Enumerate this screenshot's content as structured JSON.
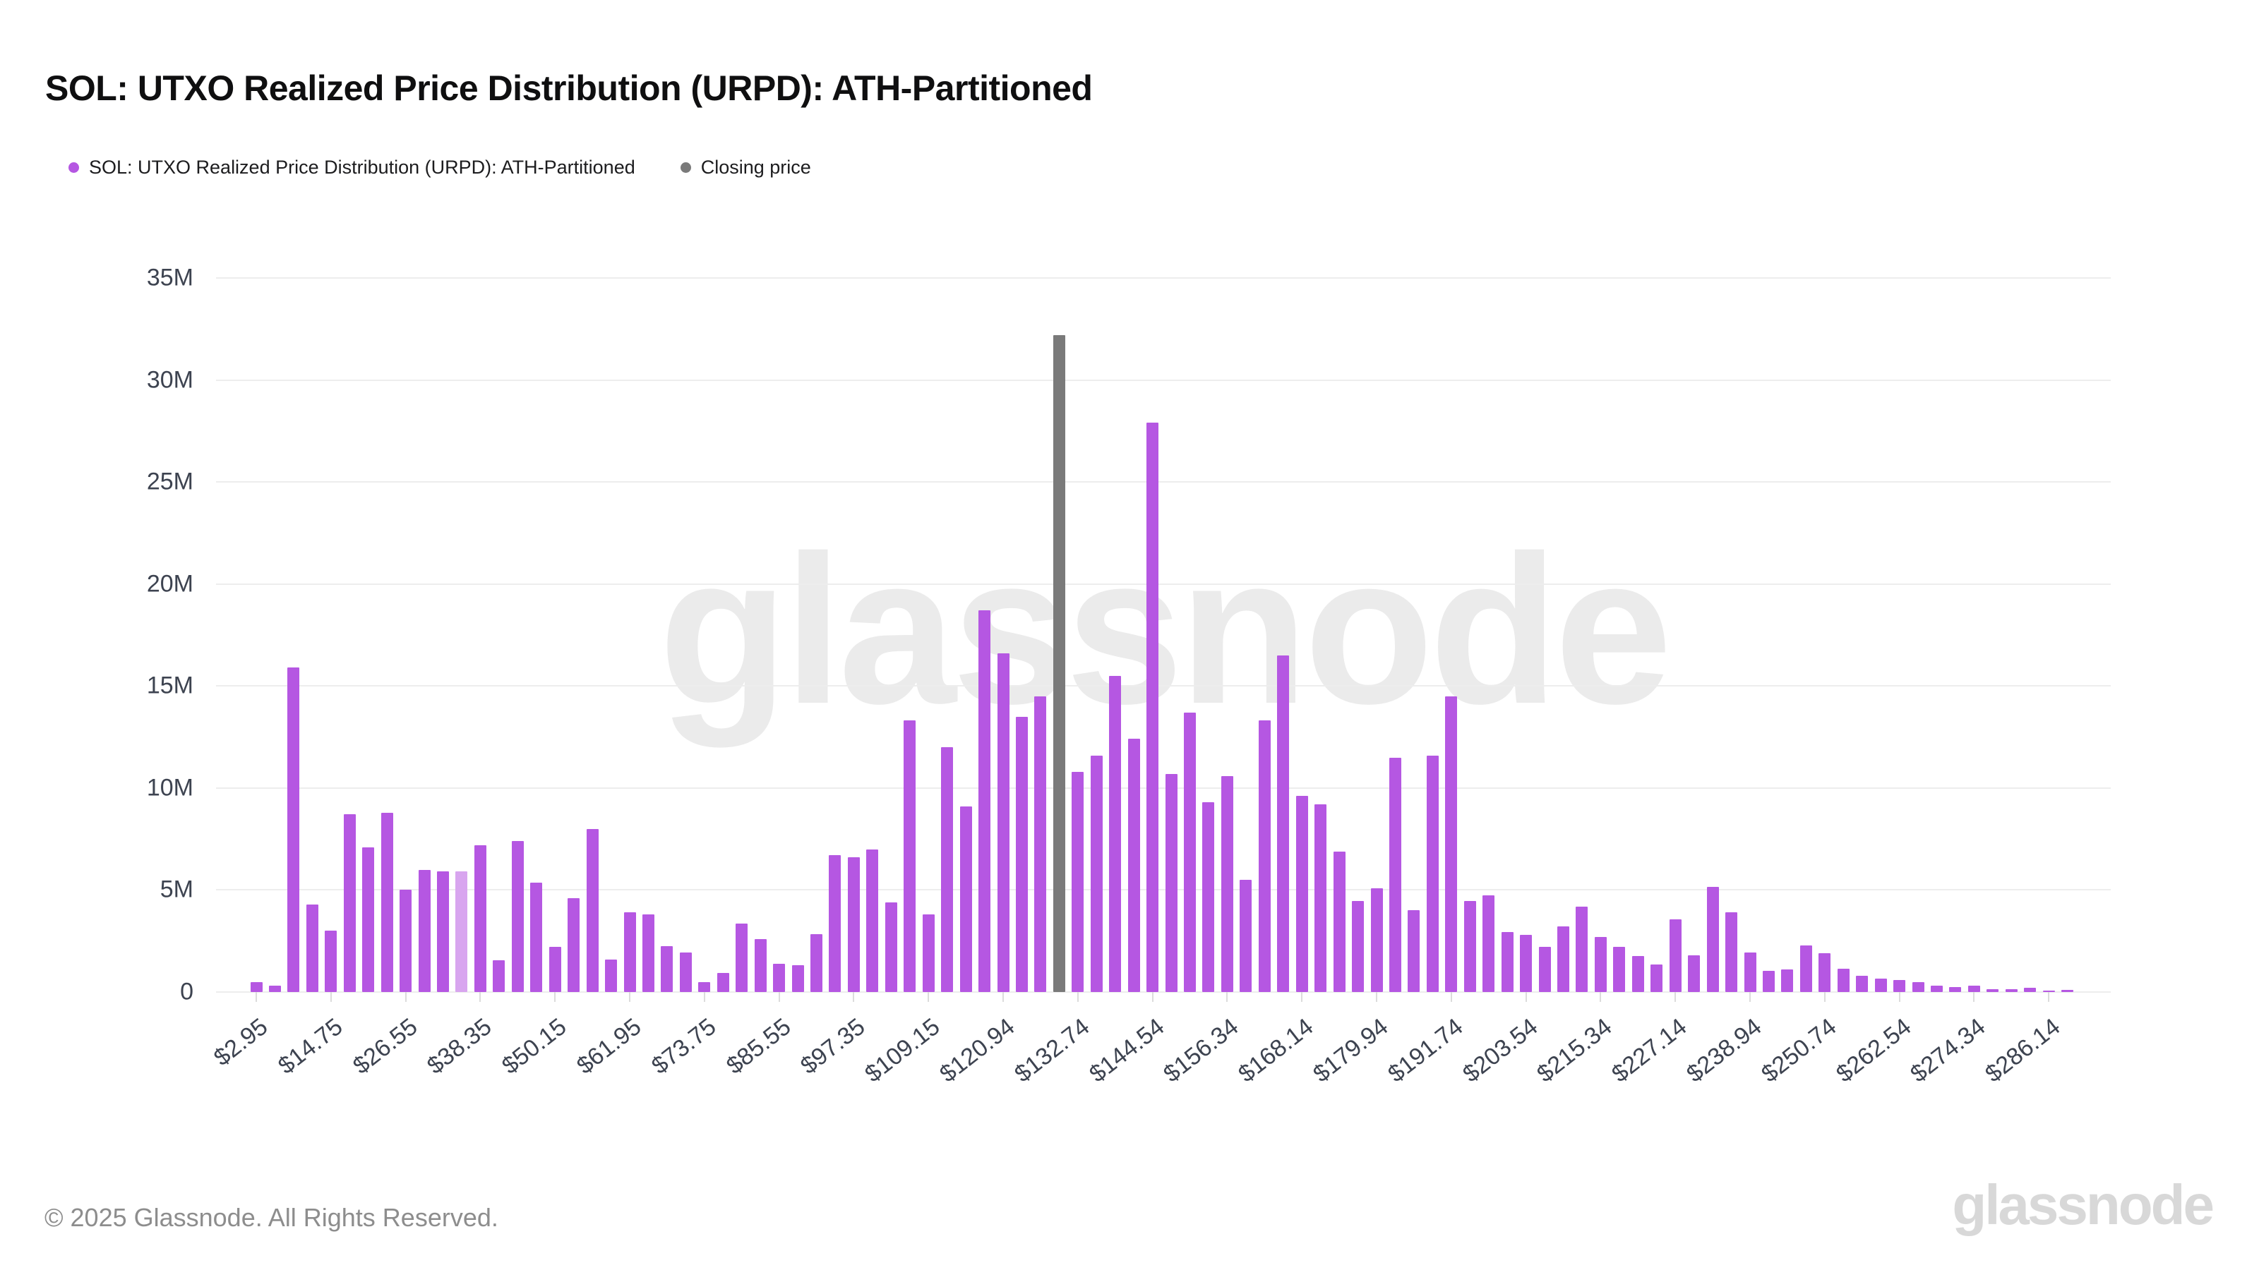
{
  "header": {
    "title": "SOL: UTXO Realized Price Distribution (URPD): ATH-Partitioned"
  },
  "legend": [
    {
      "label": "SOL: UTXO Realized Price Distribution (URPD): ATH-Partitioned",
      "color": "#b557e2"
    },
    {
      "label": "Closing price",
      "color": "#7a7a7a"
    }
  ],
  "watermark": "glassnode",
  "footer": {
    "copyright": "© 2025 Glassnode. All Rights Reserved.",
    "brand": "glassnode"
  },
  "chart_data": {
    "type": "bar",
    "title": "SOL: UTXO Realized Price Distribution (URPD): ATH-Partitioned",
    "xlabel": "",
    "ylabel": "",
    "grid": true,
    "legend_position": "top-left",
    "ylim_millions": [
      0,
      35
    ],
    "y_ticks": [
      "0",
      "5M",
      "10M",
      "15M",
      "20M",
      "25M",
      "30M",
      "35M"
    ],
    "x_tick_every": 4,
    "bar_step_usd": 2.95,
    "x_tick_labels": [
      "$2.95",
      "$14.75",
      "$26.55",
      "$38.35",
      "$50.15",
      "$61.95",
      "$73.75",
      "$85.55",
      "$97.35",
      "$109.15",
      "$120.94",
      "$132.74",
      "$144.54",
      "$156.34",
      "$168.14",
      "$179.94",
      "$191.74",
      "$203.54",
      "$215.34",
      "$227.14",
      "$238.94",
      "$250.74",
      "$262.54",
      "$274.34",
      "$286.14"
    ],
    "values_millions": [
      0.5,
      0.3,
      15.9,
      4.3,
      3.0,
      8.7,
      7.1,
      8.8,
      5.0,
      6.0,
      5.9,
      5.9,
      7.2,
      1.55,
      7.4,
      5.35,
      2.2,
      4.6,
      8.0,
      1.6,
      3.9,
      3.8,
      2.25,
      1.95,
      0.5,
      0.95,
      3.35,
      2.6,
      1.4,
      1.3,
      2.85,
      6.7,
      6.6,
      7.0,
      4.4,
      13.3,
      3.8,
      12.0,
      9.1,
      18.7,
      16.6,
      13.5,
      14.5,
      32.2,
      10.8,
      11.6,
      15.5,
      12.4,
      27.9,
      10.7,
      13.7,
      9.3,
      10.6,
      5.5,
      13.3,
      16.5,
      9.6,
      9.2,
      6.9,
      4.45,
      5.1,
      11.5,
      4.0,
      11.6,
      14.5,
      4.45,
      4.75,
      2.95,
      2.8,
      2.2,
      3.2,
      4.2,
      2.7,
      2.2,
      1.75,
      1.35,
      3.55,
      1.8,
      5.15,
      3.9,
      1.95,
      1.05,
      1.1,
      2.3,
      1.9,
      1.15,
      0.8,
      0.65,
      0.6,
      0.5,
      0.3,
      0.25,
      0.3,
      0.15,
      0.15,
      0.2,
      0.05,
      0.12
    ],
    "light_bar_index": 11,
    "closing_price_bar": {
      "index": 43,
      "value_millions": 32.2,
      "label": "Closing price"
    },
    "colors": {
      "bar": "#b557e2",
      "bar_light": "#d8a5ef",
      "closing": "#7a7a7a",
      "grid": "#ededed"
    }
  }
}
